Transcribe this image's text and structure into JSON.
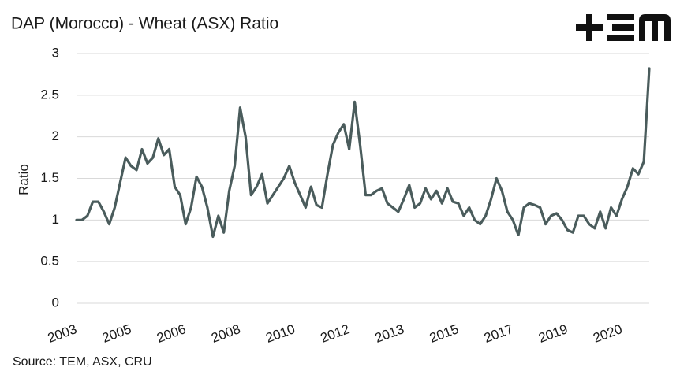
{
  "chart_data": {
    "type": "line",
    "title": "DAP (Morocco) - Wheat (ASX) Ratio",
    "y_label": "Ratio",
    "source": "Source: TEM, ASX, CRU",
    "categories": [
      "2003",
      null,
      null,
      null,
      null,
      null,
      null,
      null,
      null,
      null,
      "2005",
      null,
      null,
      null,
      null,
      null,
      null,
      null,
      null,
      null,
      "2006",
      null,
      null,
      null,
      null,
      null,
      null,
      null,
      null,
      null,
      "2008",
      null,
      null,
      null,
      null,
      null,
      null,
      null,
      null,
      null,
      "2010",
      null,
      null,
      null,
      null,
      null,
      null,
      null,
      null,
      null,
      "2012",
      null,
      null,
      null,
      null,
      null,
      null,
      null,
      null,
      null,
      "2013",
      null,
      null,
      null,
      null,
      null,
      null,
      null,
      null,
      null,
      "2015",
      null,
      null,
      null,
      null,
      null,
      null,
      null,
      null,
      null,
      "2017",
      null,
      null,
      null,
      null,
      null,
      null,
      null,
      null,
      null,
      "2019",
      null,
      null,
      null,
      null,
      null,
      null,
      null,
      null,
      null,
      "2020",
      null,
      null,
      null,
      null,
      null
    ],
    "series": [
      {
        "name": "DAP (Morocco) - Wheat (ASX) Ratio",
        "color": "#4a5c5c",
        "values": [
          1.0,
          1.0,
          1.05,
          1.22,
          1.22,
          1.1,
          0.95,
          1.15,
          1.45,
          1.75,
          1.65,
          1.6,
          1.85,
          1.68,
          1.75,
          1.98,
          1.78,
          1.85,
          1.4,
          1.3,
          0.95,
          1.15,
          1.52,
          1.4,
          1.15,
          0.8,
          1.05,
          0.85,
          1.35,
          1.65,
          2.35,
          2.0,
          1.3,
          1.4,
          1.55,
          1.2,
          1.3,
          1.4,
          1.5,
          1.65,
          1.45,
          1.3,
          1.15,
          1.4,
          1.18,
          1.15,
          1.55,
          1.9,
          2.05,
          2.15,
          1.85,
          2.42,
          1.9,
          1.3,
          1.3,
          1.35,
          1.38,
          1.2,
          1.15,
          1.1,
          1.25,
          1.42,
          1.15,
          1.2,
          1.38,
          1.25,
          1.35,
          1.2,
          1.38,
          1.22,
          1.2,
          1.05,
          1.15,
          1.0,
          0.95,
          1.05,
          1.25,
          1.5,
          1.35,
          1.1,
          1.0,
          0.82,
          1.15,
          1.2,
          1.18,
          1.15,
          0.95,
          1.05,
          1.08,
          1.0,
          0.88,
          0.85,
          1.05,
          1.05,
          0.95,
          0.9,
          1.1,
          0.9,
          1.15,
          1.05,
          1.25,
          1.4,
          1.62,
          1.55,
          1.7,
          2.82
        ]
      }
    ],
    "ylim": [
      0,
      3
    ],
    "yticks": [
      0,
      0.5,
      1,
      1.5,
      2,
      2.5,
      3
    ],
    "grid": true
  }
}
